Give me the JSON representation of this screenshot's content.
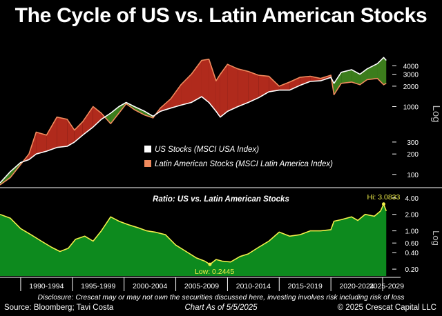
{
  "title": "The Cycle of US vs. Latin American Stocks",
  "colors": {
    "background": "#000000",
    "us_line": "#ffffff",
    "latam_line": "#f08a5d",
    "us_outperform_fill": "#3c7d1c",
    "latam_outperform_fill": "#b02a1c",
    "ratio_line": "#f2f04a",
    "ratio_fill": "#0d8a1e",
    "axis_text": "#ffffff"
  },
  "footer": {
    "disclosure": "Disclosure: Crescat may or may not own the securities discussed here, investing involves risk including risk of loss",
    "source": "Source: Bloomberg; Tavi Costa",
    "as_of": "Chart As of 5/5/2025",
    "copyright": "© 2025 Crescat Capital LLC"
  },
  "chart_data": [
    {
      "type": "line",
      "title": "",
      "scale": "log",
      "ylabel": "Log",
      "y_ticks": [
        100,
        200,
        300,
        1000,
        2000,
        3000,
        4000
      ],
      "ylim": [
        70,
        6000
      ],
      "xlim": [
        1988.0,
        2025.4
      ],
      "fill_between": "green where US above Latin America, red where Latin America above US",
      "legend": [
        "US Stocks (MSCI USA Index)",
        "Latin American Stocks (MSCI Latin America Index)"
      ],
      "legend_position": "center-right",
      "x": [
        1988.0,
        1989.0,
        1990.0,
        1990.8,
        1991.5,
        1992.5,
        1993.5,
        1994.5,
        1995.2,
        1996.0,
        1997.0,
        1997.8,
        1998.7,
        1999.5,
        2000.2,
        2001.0,
        2002.0,
        2002.8,
        2003.5,
        2004.5,
        2005.5,
        2006.5,
        2007.5,
        2008.2,
        2008.9,
        2009.3,
        2010.0,
        2011.0,
        2012.0,
        2013.0,
        2014.0,
        2015.0,
        2016.0,
        2017.0,
        2018.0,
        2019.0,
        2020.0,
        2020.3,
        2021.0,
        2022.0,
        2022.8,
        2023.5,
        2024.5,
        2025.1,
        2025.35
      ],
      "series": [
        {
          "name": "US Stocks (MSCI USA Index)",
          "values": [
            75,
            110,
            150,
            165,
            200,
            220,
            250,
            260,
            300,
            380,
            500,
            650,
            800,
            1000,
            1150,
            1000,
            850,
            720,
            850,
            950,
            1050,
            1150,
            1400,
            1150,
            850,
            700,
            850,
            1000,
            1150,
            1350,
            1650,
            1750,
            1750,
            2050,
            2350,
            2400,
            2700,
            2200,
            3200,
            3500,
            3000,
            3600,
            4300,
            5300,
            4800
          ]
        },
        {
          "name": "Latin American Stocks (MSCI Latin America Index)",
          "values": [
            70,
            90,
            140,
            200,
            420,
            380,
            700,
            650,
            450,
            600,
            1000,
            800,
            560,
            800,
            1100,
            900,
            750,
            680,
            950,
            1300,
            2100,
            3000,
            4800,
            5000,
            2400,
            3000,
            4200,
            3600,
            3300,
            2900,
            2800,
            2000,
            2300,
            2700,
            2800,
            2600,
            2900,
            1500,
            2200,
            2300,
            2100,
            2500,
            2600,
            2100,
            2200
          ]
        }
      ]
    },
    {
      "type": "area",
      "title": "Ratio: US vs. Latin American Stocks",
      "scale": "log",
      "ylabel": "Log",
      "y_ticks": [
        0.2,
        0.4,
        0.6,
        1.0,
        2.0,
        4.0
      ],
      "y_tick_labels": [
        "0.20",
        "0.40",
        "0.60",
        "1.00",
        "2.00",
        "4.00"
      ],
      "ylim": [
        0.15,
        4.6
      ],
      "xlim": [
        1988.0,
        2025.4
      ],
      "x_tick_labels": [
        "1990-1994",
        "1995-1999",
        "2000-2004",
        "2005-2009",
        "2010-2014",
        "2015-2019",
        "2020-2024",
        "2025-2029"
      ],
      "annotations": [
        {
          "text": "Hi: 3.0833",
          "x": 2025.1,
          "y": 3.0833
        },
        {
          "text": "Low: 0.2445",
          "x": 2008.3,
          "y": 0.2445
        }
      ],
      "x": [
        1988.0,
        1989.0,
        1990.0,
        1991.0,
        1992.0,
        1993.0,
        1993.8,
        1994.6,
        1995.3,
        1996.2,
        1997.0,
        1997.8,
        1998.7,
        1999.5,
        2000.4,
        2001.3,
        2002.2,
        2003.0,
        2004.0,
        2005.0,
        2006.0,
        2007.0,
        2007.8,
        2008.3,
        2008.9,
        2009.5,
        2010.3,
        2011.2,
        2012.0,
        2013.0,
        2014.0,
        2015.0,
        2016.0,
        2017.0,
        2018.0,
        2019.0,
        2020.0,
        2020.3,
        2021.0,
        2022.0,
        2022.6,
        2023.3,
        2024.2,
        2024.8,
        2025.1,
        2025.35
      ],
      "series": [
        {
          "name": "",
          "values": [
            2.0,
            1.7,
            1.1,
            0.85,
            0.65,
            0.5,
            0.42,
            0.48,
            0.7,
            0.8,
            0.65,
            1.0,
            1.8,
            1.5,
            1.3,
            1.15,
            1.0,
            0.95,
            0.85,
            0.55,
            0.42,
            0.32,
            0.28,
            0.2445,
            0.3,
            0.28,
            0.27,
            0.34,
            0.38,
            0.5,
            0.65,
            0.95,
            0.8,
            0.85,
            1.0,
            1.0,
            1.05,
            1.5,
            1.6,
            1.8,
            1.55,
            2.0,
            1.85,
            2.3,
            3.0833,
            2.3
          ]
        }
      ]
    }
  ]
}
